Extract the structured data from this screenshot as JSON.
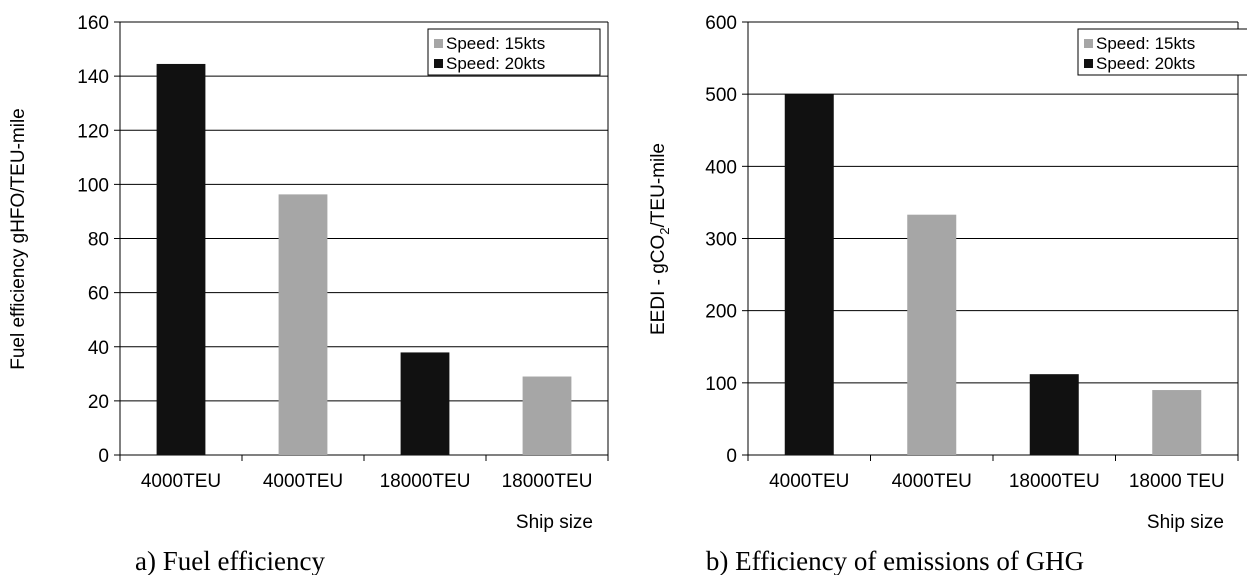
{
  "chart_data": [
    {
      "type": "bar",
      "caption": "a) Fuel efficiency",
      "ylabel": "Fuel efficiency gHFO/TEU-mile",
      "xlabel": "Ship size",
      "ylim": [
        0,
        160
      ],
      "yticks": [
        0,
        20,
        40,
        60,
        80,
        100,
        120,
        140,
        160
      ],
      "categories": [
        "4000TEU",
        "4000TEU",
        "18000TEU",
        "18000TEU"
      ],
      "values": [
        144.5,
        96.3,
        37.9,
        29.0
      ],
      "bar_series": [
        "Speed: 20kts",
        "Speed: 15kts",
        "Speed: 20kts",
        "Speed: 15kts"
      ],
      "series": [
        {
          "name": "Speed: 15kts",
          "color": "#a6a6a6"
        },
        {
          "name": "Speed: 20kts",
          "color": "#111111"
        }
      ],
      "legend": "top-right",
      "grid": true
    },
    {
      "type": "bar",
      "caption": "b) Efficiency of emissions of GHG",
      "ylabel": "EEDI - gCO2/TEU-mile",
      "ylabel_parts": [
        "EEDI - gCO",
        "2",
        "/TEU-mile"
      ],
      "xlabel": "Ship size",
      "ylim": [
        0,
        600
      ],
      "yticks": [
        0,
        100,
        200,
        300,
        400,
        500,
        600
      ],
      "categories": [
        "4000TEU",
        "4000TEU",
        "18000TEU",
        "18000 TEU"
      ],
      "values": [
        500,
        333,
        112,
        90
      ],
      "bar_series": [
        "Speed: 20kts",
        "Speed: 15kts",
        "Speed: 20kts",
        "Speed: 15kts"
      ],
      "series": [
        {
          "name": "Speed: 15kts",
          "color": "#a6a6a6"
        },
        {
          "name": "Speed: 20kts",
          "color": "#111111"
        }
      ],
      "legend": "top-right",
      "grid": true
    }
  ]
}
